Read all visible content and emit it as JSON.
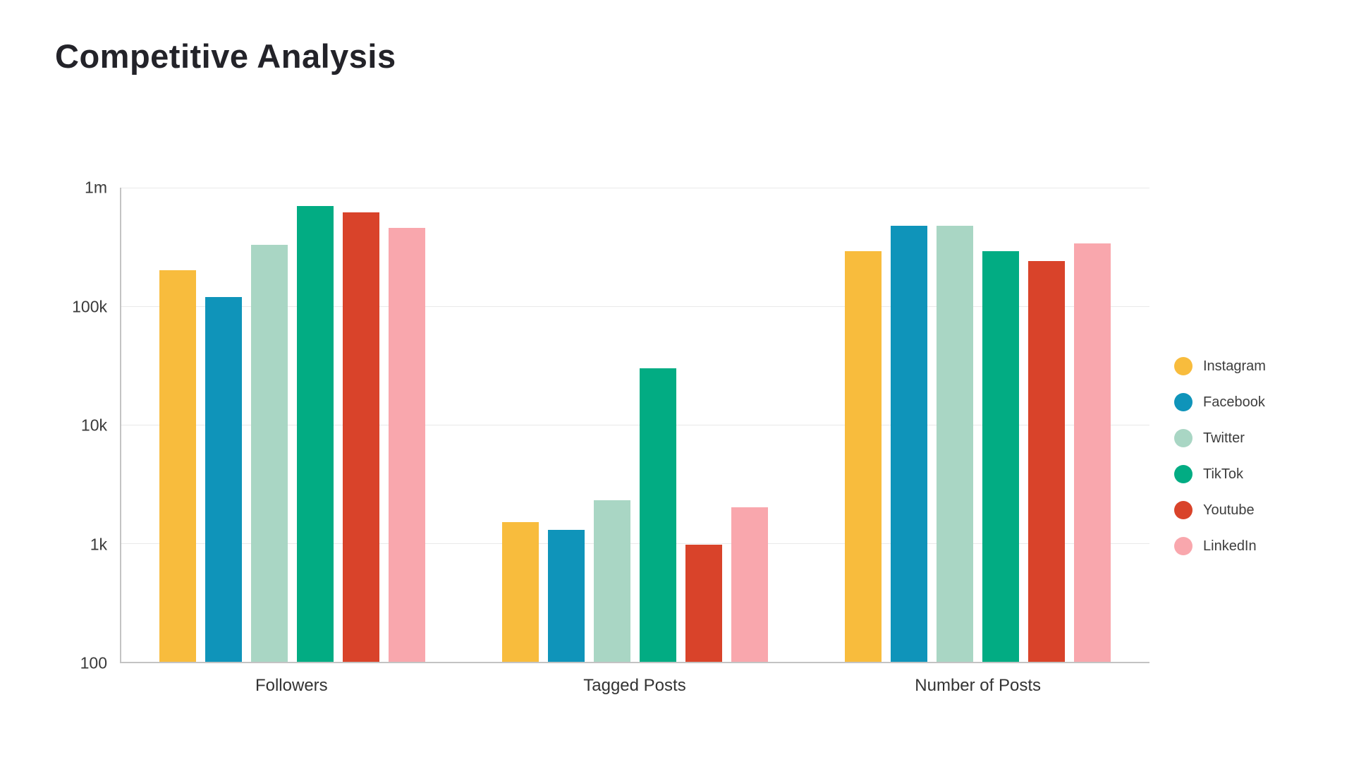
{
  "title": "Competitive Analysis",
  "chart_data": {
    "type": "bar",
    "scale": "log",
    "title": "Competitive Analysis",
    "categories": [
      "Followers",
      "Tagged Posts",
      "Number of Posts"
    ],
    "series": [
      {
        "name": "Instagram",
        "color": "#F8BC3D",
        "values": [
          200000,
          1500,
          290000
        ]
      },
      {
        "name": "Facebook",
        "color": "#0F94BA",
        "values": [
          120000,
          1300,
          480000
        ]
      },
      {
        "name": "Twitter",
        "color": "#A9D6C4",
        "values": [
          330000,
          2300,
          480000
        ]
      },
      {
        "name": "TikTok",
        "color": "#02AC83",
        "values": [
          700000,
          30000,
          290000
        ]
      },
      {
        "name": "Youtube",
        "color": "#D9432A",
        "values": [
          620000,
          970,
          240000
        ]
      },
      {
        "name": "LinkedIn",
        "color": "#F9A7AD",
        "values": [
          460000,
          2000,
          340000
        ]
      }
    ],
    "y_ticks": [
      "1m",
      "100k",
      "10k",
      "1k",
      "100"
    ],
    "y_tick_values": [
      1000000,
      100000,
      10000,
      1000,
      100
    ],
    "ylim": [
      100,
      1000000
    ],
    "xlabel": "",
    "ylabel": "",
    "grid": "horizontal",
    "legend_position": "right"
  },
  "colors": {
    "background": "#FFFFFF",
    "title_text": "#232329",
    "axis_text": "#3A3A3A",
    "gridline": "#E9E9E9",
    "axis_line": "#C3C3C3"
  }
}
